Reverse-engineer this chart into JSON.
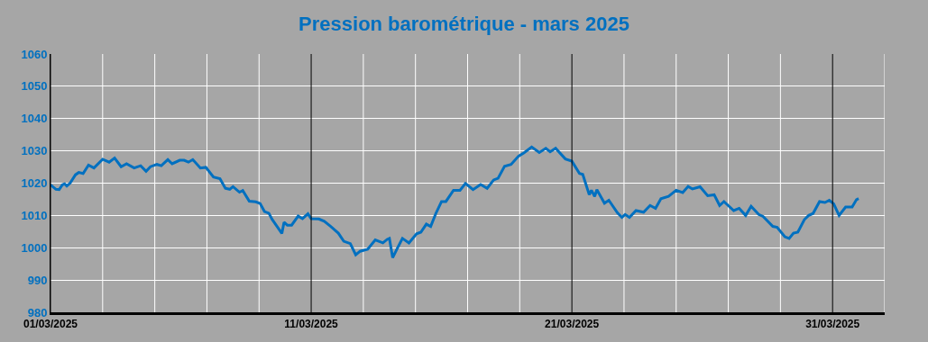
{
  "chart_data": {
    "type": "line",
    "title": "Pression barométrique - mars 2025",
    "x": [
      "2025-03-01T00:00",
      "2025-03-01T05:00",
      "2025-03-01T08:00",
      "2025-03-01T11:00",
      "2025-03-01T13:00",
      "2025-03-01T15:00",
      "2025-03-01T18:00",
      "2025-03-01T23:00",
      "2025-03-02T02:00",
      "2025-03-02T06:00",
      "2025-03-02T11:00",
      "2025-03-02T16:00",
      "2025-03-03T00:00",
      "2025-03-03T06:00",
      "2025-03-03T11:00",
      "2025-03-03T17:00",
      "2025-03-03T22:00",
      "2025-03-04T05:00",
      "2025-03-04T11:00",
      "2025-03-04T16:00",
      "2025-03-04T20:00",
      "2025-03-05T02:00",
      "2025-03-05T06:00",
      "2025-03-05T12:00",
      "2025-03-05T16:00",
      "2025-03-05T23:00",
      "2025-03-06T03:00",
      "2025-03-06T07:00",
      "2025-03-06T11:00",
      "2025-03-06T18:00",
      "2025-03-06T23:00",
      "2025-03-07T06:00",
      "2025-03-07T12:00",
      "2025-03-07T17:00",
      "2025-03-07T21:00",
      "2025-03-08T00:00",
      "2025-03-08T06:00",
      "2025-03-08T09:00",
      "2025-03-08T15:00",
      "2025-03-08T21:00",
      "2025-03-09T01:00",
      "2025-03-09T05:00",
      "2025-03-09T09:00",
      "2025-03-09T12:00",
      "2025-03-09T18:00",
      "2025-03-09T21:00",
      "2025-03-09T23:00",
      "2025-03-10T02:00",
      "2025-03-10T06:00",
      "2025-03-10T12:00",
      "2025-03-10T16:00",
      "2025-03-10T21:00",
      "2025-03-11T00:00",
      "2025-03-11T07:00",
      "2025-03-11T12:00",
      "2025-03-11T18:00",
      "2025-03-12T01:00",
      "2025-03-12T06:00",
      "2025-03-12T12:00",
      "2025-03-12T17:00",
      "2025-03-12T21:00",
      "2025-03-13T04:00",
      "2025-03-13T11:00",
      "2025-03-13T18:00",
      "2025-03-13T22:00",
      "2025-03-14T00:00",
      "2025-03-14T03:00",
      "2025-03-14T07:00",
      "2025-03-14T12:00",
      "2025-03-14T18:00",
      "2025-03-15T01:00",
      "2025-03-15T05:00",
      "2025-03-15T10:00",
      "2025-03-15T14:00",
      "2025-03-15T19:00",
      "2025-03-16T00:00",
      "2025-03-16T04:00",
      "2025-03-16T11:00",
      "2025-03-16T17:00",
      "2025-03-16T22:00",
      "2025-03-17T05:00",
      "2025-03-17T12:00",
      "2025-03-17T18:00",
      "2025-03-18T00:00",
      "2025-03-18T04:00",
      "2025-03-18T10:00",
      "2025-03-18T16:00",
      "2025-03-18T23:00",
      "2025-03-19T04:00",
      "2025-03-19T11:00",
      "2025-03-19T18:00",
      "2025-03-20T00:00",
      "2025-03-20T04:00",
      "2025-03-20T09:00",
      "2025-03-20T18:00",
      "2025-03-21T00:00",
      "2025-03-21T07:00",
      "2025-03-21T10:00",
      "2025-03-21T16:00",
      "2025-03-21T18:00",
      "2025-03-21T21:00",
      "2025-03-21T23:00",
      "2025-03-22T06:00",
      "2025-03-22T10:00",
      "2025-03-22T18:00",
      "2025-03-22T22:00",
      "2025-03-23T01:00",
      "2025-03-23T05:00",
      "2025-03-23T11:00",
      "2025-03-23T18:00",
      "2025-03-24T00:00",
      "2025-03-24T05:00",
      "2025-03-24T10:00",
      "2025-03-24T17:00",
      "2025-03-25T00:00",
      "2025-03-25T06:00",
      "2025-03-25T11:00",
      "2025-03-25T15:00",
      "2025-03-25T22:00",
      "2025-03-26T05:00",
      "2025-03-26T11:00",
      "2025-03-26T16:00",
      "2025-03-26T20:00",
      "2025-03-27T05:00",
      "2025-03-27T10:00",
      "2025-03-27T16:00",
      "2025-03-27T21:00",
      "2025-03-28T04:00",
      "2025-03-28T08:00",
      "2025-03-28T17:00",
      "2025-03-28T21:00",
      "2025-03-29T04:00",
      "2025-03-29T08:00",
      "2025-03-29T12:00",
      "2025-03-29T16:00",
      "2025-03-29T22:00",
      "2025-03-30T02:00",
      "2025-03-30T06:00",
      "2025-03-30T12:00",
      "2025-03-30T17:00",
      "2025-03-30T21:00",
      "2025-03-31T01:00",
      "2025-03-31T06:00",
      "2025-03-31T12:00",
      "2025-03-31T18:00",
      "2025-03-31T22:00",
      "2025-04-01T00:00"
    ],
    "series": [
      {
        "color": "#0070c0",
        "values": [
          1019.5,
          1018.1,
          1018,
          1019.5,
          1019.8,
          1019.1,
          1020,
          1022.6,
          1023.3,
          1023,
          1025.6,
          1024.7,
          1027.4,
          1026.5,
          1027.8,
          1025.1,
          1026,
          1024.7,
          1025.4,
          1023.7,
          1025.1,
          1025.8,
          1025.4,
          1027.3,
          1026,
          1027.1,
          1027.1,
          1026.5,
          1027.3,
          1024.7,
          1024.9,
          1021.9,
          1021.4,
          1018.4,
          1018.1,
          1018.9,
          1017.2,
          1017.7,
          1014.4,
          1014.2,
          1013.7,
          1011.2,
          1010.7,
          1008.8,
          1005.9,
          1004.4,
          1007.9,
          1007,
          1007,
          1009.8,
          1009,
          1010.5,
          1009,
          1008.9,
          1008.2,
          1006.6,
          1004.5,
          1002,
          1001.3,
          997.8,
          998.9,
          999.5,
          1002.4,
          1001.5,
          1002.6,
          1002.9,
          996.9,
          999.6,
          1002.9,
          1001.5,
          1004.3,
          1004.8,
          1007.3,
          1006.6,
          1010.8,
          1014.3,
          1014.3,
          1017.8,
          1017.8,
          1019.9,
          1018,
          1019.6,
          1018.4,
          1021,
          1021.5,
          1025.2,
          1025.8,
          1028.4,
          1029.4,
          1031.2,
          1029.5,
          1030.8,
          1029.7,
          1030.8,
          1027.5,
          1026.8,
          1023,
          1022.7,
          1016.4,
          1017.8,
          1015.9,
          1018,
          1013.8,
          1014.7,
          1010.8,
          1009.4,
          1010.3,
          1009.4,
          1011.5,
          1011,
          1013.1,
          1012.2,
          1015.2,
          1015.9,
          1017.8,
          1017.1,
          1019,
          1018.2,
          1018.9,
          1016.1,
          1016.4,
          1013.1,
          1014.3,
          1011.5,
          1012.2,
          1010,
          1012.8,
          1010.3,
          1009.7,
          1006.6,
          1006.3,
          1003.4,
          1002.9,
          1004.5,
          1004.8,
          1008.7,
          1010,
          1010.6,
          1014.3,
          1014,
          1014.7,
          1013.6,
          1010,
          1012.6,
          1012.6,
          1014.9,
          1015.2
        ]
      }
    ],
    "xlim": [
      "2025-03-01",
      "2025-04-02"
    ],
    "xticks": [
      {
        "value": "2025-03-01",
        "label": "01/03/2025"
      },
      {
        "value": "2025-03-03",
        "label": null
      },
      {
        "value": "2025-03-05",
        "label": null
      },
      {
        "value": "2025-03-07",
        "label": null
      },
      {
        "value": "2025-03-09",
        "label": null
      },
      {
        "value": "2025-03-11",
        "label": "11/03/2025"
      },
      {
        "value": "2025-03-13",
        "label": null
      },
      {
        "value": "2025-03-15",
        "label": null
      },
      {
        "value": "2025-03-17",
        "label": null
      },
      {
        "value": "2025-03-19",
        "label": null
      },
      {
        "value": "2025-03-21",
        "label": "21/03/2025"
      },
      {
        "value": "2025-03-23",
        "label": null
      },
      {
        "value": "2025-03-25",
        "label": null
      },
      {
        "value": "2025-03-27",
        "label": null
      },
      {
        "value": "2025-03-29",
        "label": null
      },
      {
        "value": "2025-03-31",
        "label": "31/03/2025"
      },
      {
        "value": "2025-04-02",
        "label": null
      }
    ],
    "ylim": [
      980,
      1060
    ],
    "yticks": [
      980,
      990,
      1000,
      1010,
      1020,
      1030,
      1040,
      1050,
      1060
    ],
    "grid": true,
    "marker": "none",
    "line_style": "solid"
  }
}
